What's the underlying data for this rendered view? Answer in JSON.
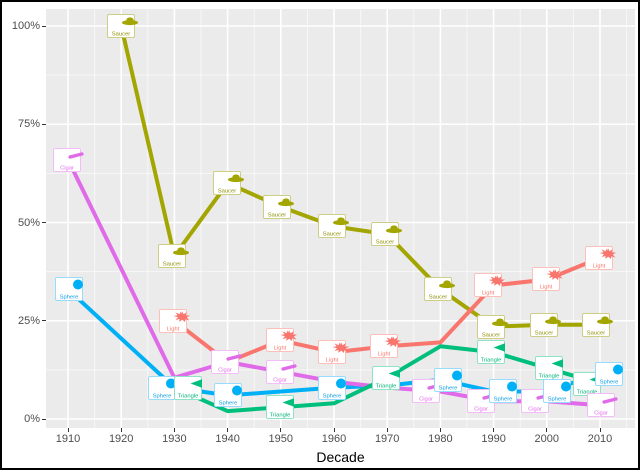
{
  "chart_data": {
    "type": "line",
    "title": "",
    "xlabel": "Decade",
    "ylabel": "",
    "x_ticks": [
      "1910",
      "1920",
      "1930",
      "1940",
      "1950",
      "1960",
      "1970",
      "1980",
      "1990",
      "2000",
      "2010"
    ],
    "y_ticks": [
      {
        "v": 0,
        "label": "0%"
      },
      {
        "v": 25,
        "label": "25%"
      },
      {
        "v": 50,
        "label": "50%"
      },
      {
        "v": 75,
        "label": "75%"
      },
      {
        "v": 100,
        "label": "100%"
      }
    ],
    "xlim": [
      1906,
      2016
    ],
    "ylim": [
      0,
      100
    ],
    "grid": "white major and minor gridlines on grey panel",
    "legend_position": "none",
    "panel_background": "#EBEBEB",
    "major_grid_color": "#FFFFFF",
    "minor_grid_color": "rgba(255,255,255,0.6)",
    "axis_text_color": "#4d4d4d",
    "series": [
      {
        "name": "Saucer",
        "icon": "saucer-icon",
        "color": "#A3A500",
        "border_color": "#cdcd84",
        "text_color": "#8f8f00",
        "points": [
          [
            1920,
            100
          ],
          [
            1930,
            41.5
          ],
          [
            1940,
            60
          ],
          [
            1950,
            54
          ],
          [
            1960,
            49
          ],
          [
            1970,
            47
          ],
          [
            1980,
            33
          ],
          [
            1990,
            23.5
          ],
          [
            2000,
            24
          ],
          [
            2010,
            24
          ]
        ],
        "labels": [
          [
            1920,
            0
          ],
          [
            1930,
            -2
          ],
          [
            1940,
            -1
          ],
          [
            1950,
            -4
          ],
          [
            1960,
            -2
          ],
          [
            1970,
            -2
          ],
          [
            1980,
            -2
          ],
          [
            1990,
            -3
          ],
          [
            2000,
            -3
          ],
          [
            2010,
            -4
          ]
        ]
      },
      {
        "name": "Sphere",
        "icon": "sphere-icon",
        "color": "#00B0F6",
        "border_color": "#97dcfc",
        "text_color": "#0d9de0",
        "points": [
          [
            1910,
            33
          ],
          [
            1930,
            8
          ],
          [
            1940,
            6
          ],
          [
            1950,
            7
          ],
          [
            1960,
            8
          ],
          [
            1970,
            8.5
          ],
          [
            1980,
            10
          ],
          [
            1990,
            7
          ],
          [
            2000,
            7
          ],
          [
            2010,
            11.5
          ]
        ],
        "labels": [
          [
            1910,
            1
          ],
          [
            1930,
            -12
          ],
          [
            1940,
            0
          ],
          [
            1960,
            -2
          ],
          [
            1980,
            8
          ],
          [
            1990,
            9
          ],
          [
            2000,
            10
          ],
          [
            2010,
            9
          ]
        ]
      },
      {
        "name": "Cigar",
        "icon": "cigar-icon",
        "color": "#E06BE8",
        "border_color": "#f2bdf6",
        "text_color": "#e06be8",
        "points": [
          [
            1910,
            66
          ],
          [
            1930,
            10.5
          ],
          [
            1940,
            14.5
          ],
          [
            1950,
            12
          ],
          [
            1960,
            9.5
          ],
          [
            1970,
            8
          ],
          [
            1980,
            7
          ],
          [
            1990,
            4.5
          ],
          [
            2000,
            4.5
          ],
          [
            2010,
            3.5
          ]
        ],
        "labels": [
          [
            1910,
            -1
          ],
          [
            1940,
            -3
          ],
          [
            1950,
            -1
          ],
          [
            1980,
            -14
          ],
          [
            1990,
            -13
          ],
          [
            2000,
            -12
          ],
          [
            2010,
            1
          ]
        ]
      },
      {
        "name": "Light",
        "icon": "light-icon",
        "color": "#F8766D",
        "border_color": "#fcc0bb",
        "text_color": "#f8766d",
        "points": [
          [
            1930,
            25
          ],
          [
            1940,
            14.5
          ],
          [
            1950,
            20
          ],
          [
            1960,
            17
          ],
          [
            1970,
            18.5
          ],
          [
            1980,
            19.5
          ],
          [
            1990,
            34
          ],
          [
            2000,
            35.5
          ],
          [
            2010,
            41
          ]
        ],
        "labels": [
          [
            1930,
            -1
          ],
          [
            1950,
            -1
          ],
          [
            1960,
            -2
          ],
          [
            1970,
            -3
          ],
          [
            1990,
            -6
          ],
          [
            2000,
            -1
          ],
          [
            2010,
            -1
          ]
        ]
      },
      {
        "name": "Triangle",
        "icon": "triangle-icon",
        "color": "#00BF7D",
        "border_color": "#8fe3c4",
        "text_color": "#00b377",
        "points": [
          [
            1930,
            8
          ],
          [
            1940,
            2
          ],
          [
            1950,
            3
          ],
          [
            1960,
            4
          ],
          [
            1970,
            10.5
          ],
          [
            1980,
            18.5
          ],
          [
            1990,
            17
          ],
          [
            2000,
            13
          ],
          [
            2010,
            9
          ]
        ],
        "labels": [
          [
            1930,
            14
          ],
          [
            1950,
            -1
          ],
          [
            1970,
            -1
          ],
          [
            1990,
            -3
          ],
          [
            2000,
            2
          ],
          [
            2010,
            -13
          ]
        ]
      }
    ]
  }
}
